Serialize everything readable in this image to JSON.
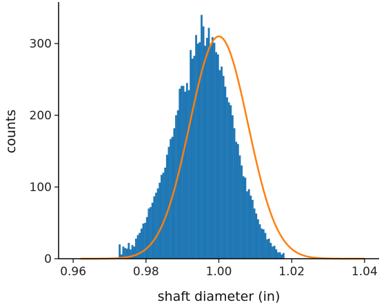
{
  "chart_data": {
    "type": "bar",
    "xlabel": "shaft diameter (in)",
    "ylabel": "counts",
    "xlim": [
      0.956,
      1.044
    ],
    "ylim": [
      0,
      355
    ],
    "x_ticks": [
      0.96,
      0.98,
      1.0,
      1.02,
      1.04
    ],
    "x_tick_labels": [
      "0.96",
      "0.98",
      "1.00",
      "1.02",
      "1.04"
    ],
    "y_ticks": [
      0,
      100,
      200,
      300
    ],
    "y_tick_labels": [
      "0",
      "100",
      "200",
      "300"
    ],
    "grid": false,
    "legend": "none",
    "bar_color": "#1f77b4",
    "curve_color": "#ff7f0e",
    "bins": {
      "start": 0.9725,
      "width": 0.0005,
      "counts": [
        20,
        6,
        17,
        15,
        14,
        22,
        13,
        19,
        17,
        28,
        33,
        36,
        42,
        49,
        50,
        58,
        70,
        72,
        78,
        87,
        92,
        98,
        106,
        117,
        120,
        127,
        145,
        156,
        167,
        170,
        182,
        200,
        207,
        237,
        241,
        241,
        233,
        245,
        235,
        291,
        279,
        283,
        312,
        300,
        302,
        340,
        324,
        297,
        308,
        322,
        297,
        309,
        301,
        288,
        285,
        263,
        268,
        255,
        240,
        225,
        218,
        214,
        200,
        182,
        163,
        160,
        144,
        130,
        115,
        113,
        94,
        97,
        88,
        82,
        70,
        63,
        55,
        48,
        42,
        41,
        36,
        27,
        28,
        22,
        17,
        18,
        13,
        9,
        9,
        6,
        8
      ]
    },
    "fit": {
      "mean": 1.0,
      "sd": 0.008,
      "peak": 310
    }
  }
}
